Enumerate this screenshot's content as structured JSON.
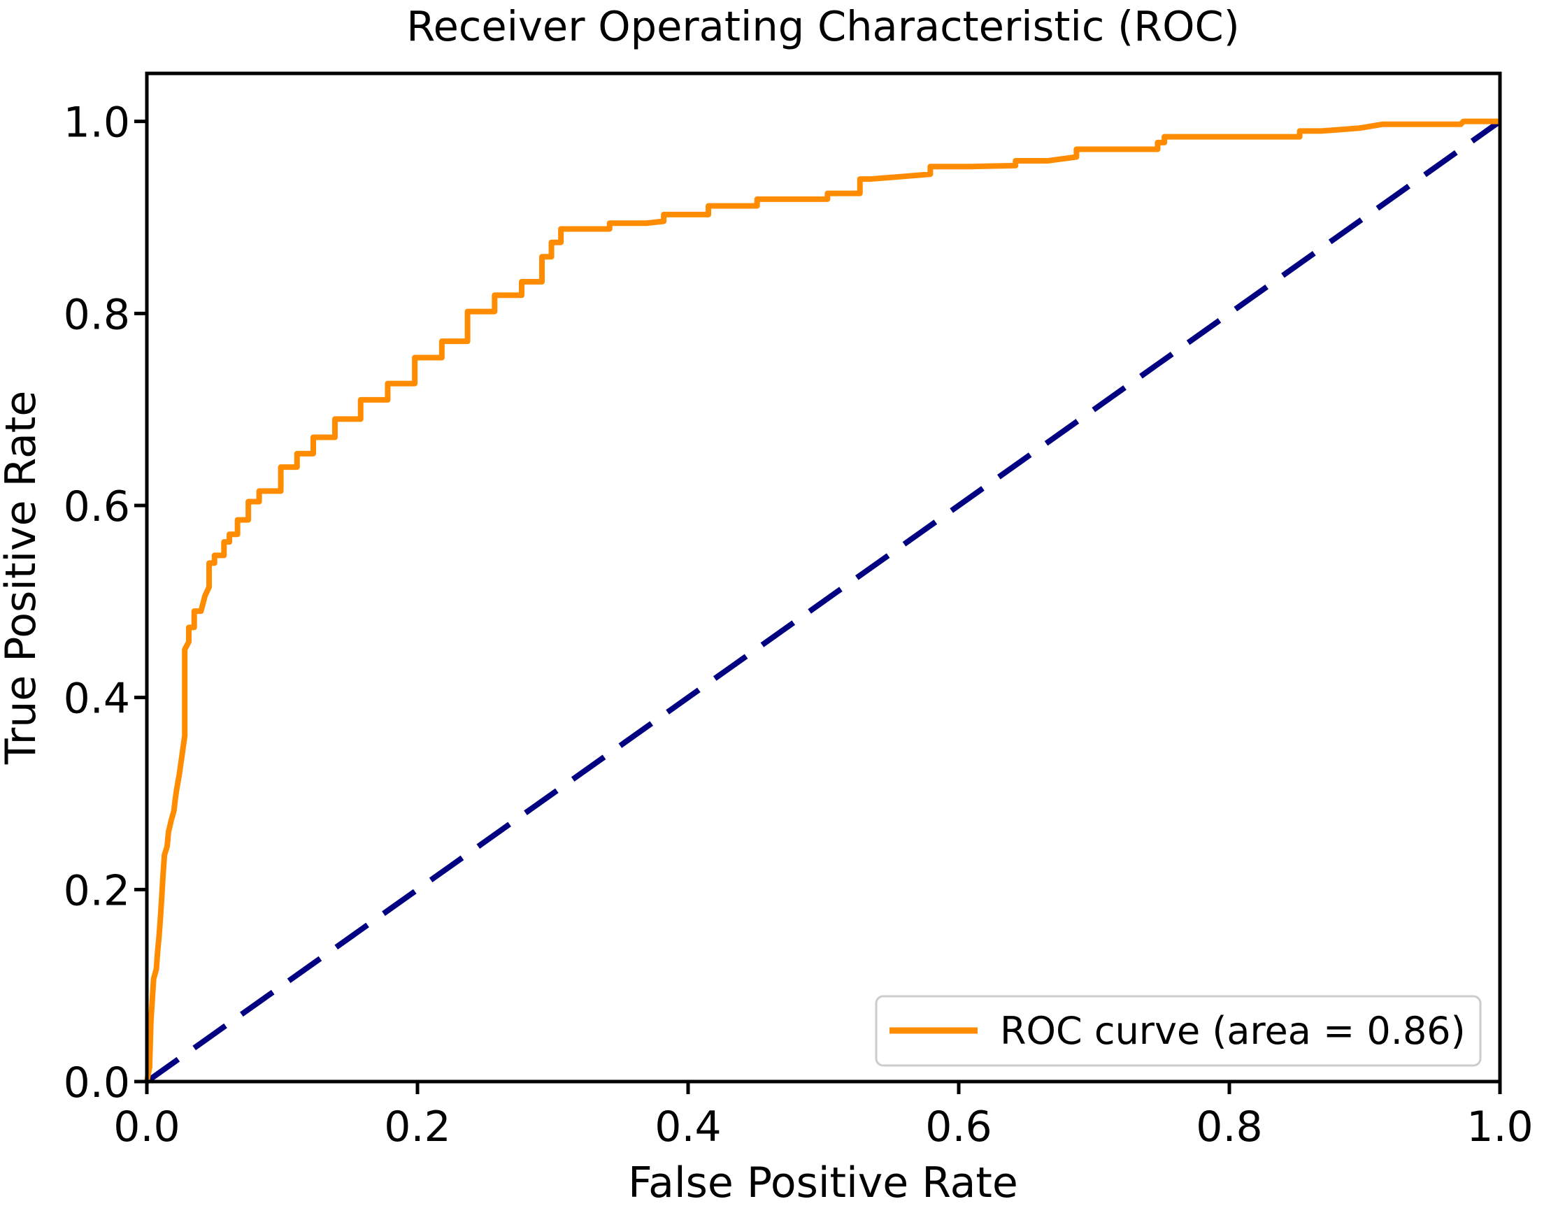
{
  "chart_data": {
    "type": "line",
    "title": "Receiver Operating Characteristic (ROC)",
    "xlabel": "False Positive Rate",
    "ylabel": "True Positive Rate",
    "xlim": [
      0.0,
      1.0
    ],
    "ylim": [
      0.0,
      1.05
    ],
    "grid": false,
    "x_ticks": [
      "0.0",
      "0.2",
      "0.4",
      "0.6",
      "0.8",
      "1.0"
    ],
    "y_ticks": [
      "0.0",
      "0.2",
      "0.4",
      "0.6",
      "0.8",
      "1.0"
    ],
    "x_tick_values": [
      0.0,
      0.2,
      0.4,
      0.6,
      0.8,
      1.0
    ],
    "y_tick_values": [
      0.0,
      0.2,
      0.4,
      0.6,
      0.8,
      1.0
    ],
    "auc": 0.86,
    "legend": {
      "position": "lower right",
      "entries": [
        {
          "label": "ROC curve (area = 0.86)",
          "color": "#FF8C00",
          "style": "solid"
        }
      ]
    },
    "series": [
      {
        "name": "ROC curve",
        "color": "#FF8C00",
        "style": "solid",
        "points": [
          [
            0.0,
            0.0
          ],
          [
            0.002,
            0.015
          ],
          [
            0.003,
            0.063
          ],
          [
            0.004,
            0.085
          ],
          [
            0.005,
            0.107
          ],
          [
            0.007,
            0.117
          ],
          [
            0.008,
            0.136
          ],
          [
            0.009,
            0.151
          ],
          [
            0.01,
            0.17
          ],
          [
            0.011,
            0.192
          ],
          [
            0.012,
            0.216
          ],
          [
            0.013,
            0.236
          ],
          [
            0.015,
            0.245
          ],
          [
            0.016,
            0.26
          ],
          [
            0.018,
            0.272
          ],
          [
            0.02,
            0.282
          ],
          [
            0.021,
            0.294
          ],
          [
            0.022,
            0.304
          ],
          [
            0.024,
            0.32
          ],
          [
            0.026,
            0.34
          ],
          [
            0.028,
            0.36
          ],
          [
            0.028,
            0.45
          ],
          [
            0.031,
            0.458
          ],
          [
            0.035,
            0.473
          ],
          [
            0.04,
            0.49
          ],
          [
            0.043,
            0.506
          ],
          [
            0.046,
            0.515
          ],
          [
            0.05,
            0.54
          ],
          [
            0.057,
            0.548
          ],
          [
            0.061,
            0.562
          ],
          [
            0.067,
            0.57
          ],
          [
            0.075,
            0.585
          ],
          [
            0.083,
            0.604
          ],
          [
            0.099,
            0.615
          ],
          [
            0.111,
            0.64
          ],
          [
            0.123,
            0.654
          ],
          [
            0.139,
            0.671
          ],
          [
            0.158,
            0.69
          ],
          [
            0.178,
            0.71
          ],
          [
            0.198,
            0.727
          ],
          [
            0.218,
            0.754
          ],
          [
            0.237,
            0.771
          ],
          [
            0.257,
            0.802
          ],
          [
            0.277,
            0.819
          ],
          [
            0.292,
            0.833
          ],
          [
            0.299,
            0.859
          ],
          [
            0.306,
            0.874
          ],
          [
            0.311,
            0.888
          ],
          [
            0.342,
            0.888
          ],
          [
            0.369,
            0.894
          ],
          [
            0.382,
            0.896
          ],
          [
            0.415,
            0.903
          ],
          [
            0.451,
            0.912
          ],
          [
            0.503,
            0.919
          ],
          [
            0.527,
            0.925
          ],
          [
            0.535,
            0.94
          ],
          [
            0.553,
            0.942
          ],
          [
            0.579,
            0.945
          ],
          [
            0.609,
            0.953
          ],
          [
            0.642,
            0.954
          ],
          [
            0.666,
            0.959
          ],
          [
            0.687,
            0.963
          ],
          [
            0.696,
            0.971
          ],
          [
            0.747,
            0.971
          ],
          [
            0.752,
            0.978
          ],
          [
            0.796,
            0.984
          ],
          [
            0.852,
            0.984
          ],
          [
            0.868,
            0.99
          ],
          [
            0.896,
            0.993
          ],
          [
            0.913,
            0.997
          ],
          [
            0.971,
            0.997
          ],
          [
            0.973,
            1.0
          ],
          [
            1.0,
            1.0
          ]
        ]
      },
      {
        "name": "chance diagonal",
        "color": "#000080",
        "style": "dashed",
        "points": [
          [
            0.0,
            0.0
          ],
          [
            1.0,
            1.0
          ]
        ]
      }
    ]
  },
  "colors": {
    "background": "#ffffff",
    "spine": "#000000",
    "text": "#000000",
    "roc": "#FF8C00",
    "diagonal": "#000080",
    "legend_border": "#cccccc",
    "legend_fill": "#ffffff"
  }
}
